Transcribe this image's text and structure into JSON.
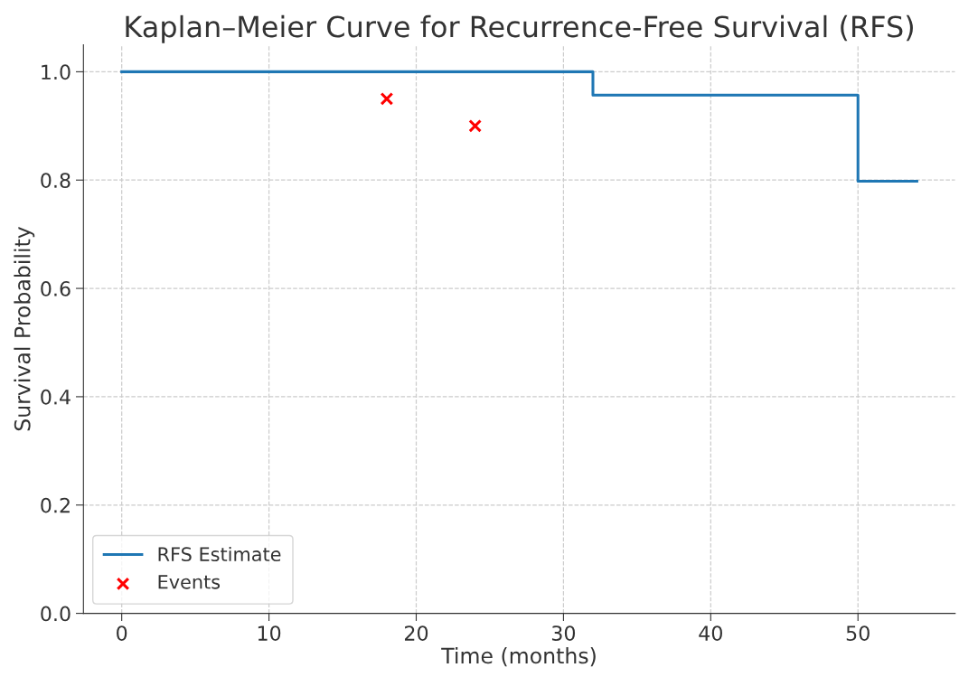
{
  "chart_data": {
    "type": "step",
    "title": "Kaplan–Meier Curve for Recurrence-Free Survival (RFS)",
    "xlabel": "Time (months)",
    "ylabel": "Survival Probability",
    "series": [
      {
        "name": "RFS Estimate",
        "color": "#1f77b4",
        "x": [
          0,
          32,
          50,
          54
        ],
        "values": [
          1.0,
          0.957,
          0.798,
          0.798
        ]
      },
      {
        "name": "Events",
        "type": "scatter",
        "color": "#ff0000",
        "marker": "cross",
        "x": [
          18,
          24
        ],
        "values": [
          0.95,
          0.9
        ]
      }
    ],
    "xlim": [
      -2.6,
      56.6
    ],
    "ylim": [
      0,
      1.05
    ],
    "xticks": [
      0,
      10,
      20,
      30,
      40,
      50
    ],
    "yticks": [
      {
        "value": 0,
        "label": "0.0"
      },
      {
        "value": 0.2,
        "label": "0.2"
      },
      {
        "value": 0.4,
        "label": "0.4"
      },
      {
        "value": 0.6,
        "label": "0.6"
      },
      {
        "value": 0.8,
        "label": "0.8"
      },
      {
        "value": 1.0,
        "label": "1.0"
      }
    ],
    "grid": true,
    "legend": "bottom left"
  }
}
